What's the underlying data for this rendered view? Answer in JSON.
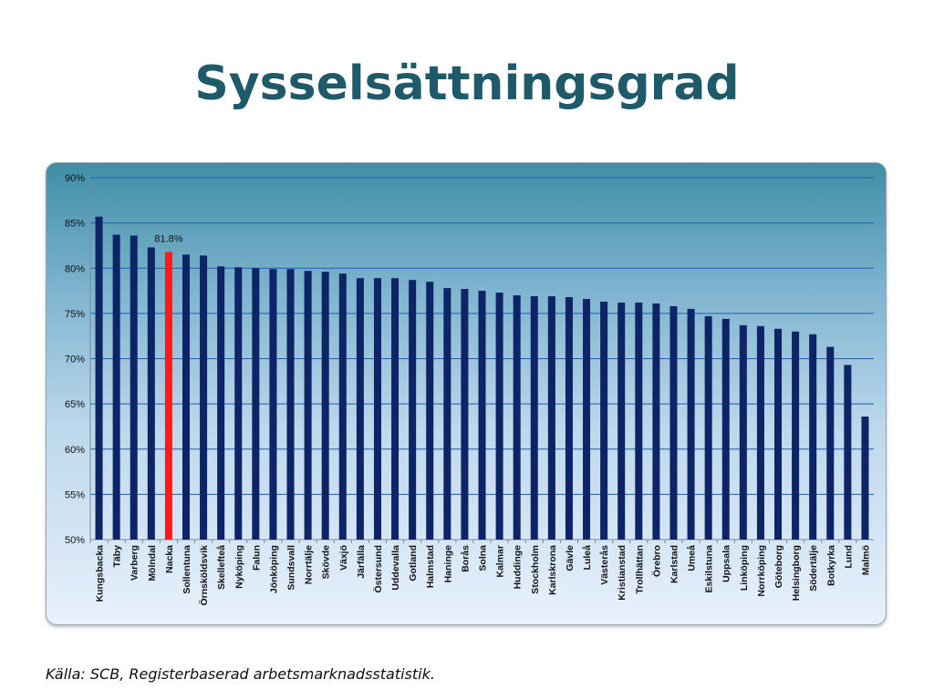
{
  "slide": {
    "title": "Sysselsättningsgrad",
    "source": "Källa: SCB, Registerbaserad arbetsmarknadsstatistik."
  },
  "chart_data": {
    "type": "bar",
    "title": "",
    "xlabel": "",
    "ylabel": "",
    "ylim": [
      50,
      90
    ],
    "y_ticks": [
      50,
      55,
      60,
      65,
      70,
      75,
      80,
      85,
      90
    ],
    "y_tick_format": "percent",
    "grid": true,
    "bar_color": "#0d2466",
    "highlight_color": "#ff1a1a",
    "highlight_category": "Nacka",
    "annotations": [
      {
        "category": "Nacka",
        "text": "81.8%"
      }
    ],
    "categories": [
      "Kungsbacka",
      "Täby",
      "Varberg",
      "Mölndal",
      "Nacka",
      "Sollentuna",
      "Örnsköldsvik",
      "Skellefteå",
      "Nyköping",
      "Falun",
      "Jönköping",
      "Sundsvall",
      "Norrtälje",
      "Skövde",
      "Växjö",
      "Järfälla",
      "Östersund",
      "Uddevalla",
      "Gotland",
      "Halmstad",
      "Haninge",
      "Borås",
      "Solna",
      "Kalmar",
      "Huddinge",
      "Stockholm",
      "Karlskrona",
      "Gävle",
      "Luleå",
      "Västerås",
      "Kristianstad",
      "Trollhättan",
      "Örebro",
      "Karlstad",
      "Umeå",
      "Eskilstuna",
      "Uppsala",
      "Linköping",
      "Norrköping",
      "Göteborg",
      "Helsingborg",
      "Södertälje",
      "Botkyrka",
      "Lund",
      "Malmö"
    ],
    "values": [
      85.7,
      83.7,
      83.6,
      82.3,
      81.8,
      81.5,
      81.4,
      80.2,
      80.1,
      80.0,
      79.9,
      79.9,
      79.7,
      79.6,
      79.4,
      78.9,
      78.9,
      78.9,
      78.7,
      78.5,
      77.8,
      77.7,
      77.5,
      77.3,
      77.0,
      76.9,
      76.9,
      76.8,
      76.6,
      76.3,
      76.2,
      76.2,
      76.1,
      75.8,
      75.5,
      74.7,
      74.4,
      73.7,
      73.6,
      73.3,
      73.0,
      72.7,
      71.3,
      69.3,
      63.6
    ]
  }
}
